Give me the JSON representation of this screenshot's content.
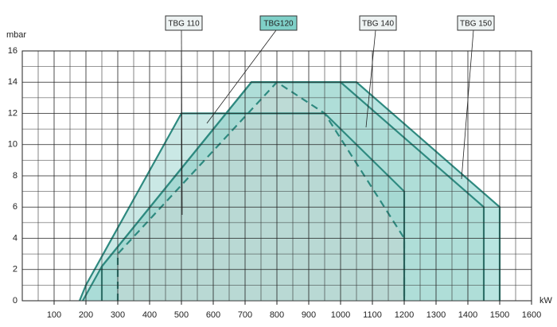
{
  "chart_data": {
    "type": "area",
    "ylabel": "mbar",
    "xlabel": "kW",
    "xlim": [
      0,
      1600
    ],
    "ylim": [
      0,
      16
    ],
    "xticks": [
      100,
      200,
      300,
      400,
      500,
      600,
      700,
      800,
      900,
      1000,
      1100,
      1200,
      1300,
      1400,
      1500,
      1600
    ],
    "yticks": [
      0,
      2,
      4,
      6,
      8,
      10,
      12,
      14,
      16
    ],
    "xminorticks": [
      50,
      150,
      250,
      350,
      450,
      550,
      650,
      750,
      850,
      950,
      1050,
      1150,
      1250,
      1350,
      1450,
      1550
    ],
    "yminorticks": [
      1,
      3,
      5,
      7,
      9,
      11,
      13,
      15
    ],
    "grid": true,
    "series": [
      {
        "name": "TBG 150",
        "color": "#7fd0c8",
        "x": [
          190,
          250,
          720,
          1050,
          1500,
          1500
        ],
        "values": [
          0,
          2.2,
          14,
          14,
          6,
          0
        ]
      },
      {
        "name": "TBG 140",
        "color": "#a8d8d2",
        "x": [
          250,
          250,
          720,
          1000,
          1450,
          1450
        ],
        "values": [
          0,
          2.2,
          14,
          14,
          6,
          0
        ]
      },
      {
        "name": "TBG 110",
        "color": "#9ed6cf",
        "x": [
          180,
          200,
          500,
          950,
          1200,
          1200
        ],
        "values": [
          0,
          1,
          12,
          12,
          7,
          0
        ]
      },
      {
        "name": "TBG120",
        "color": "#c9d8d6",
        "x": [
          300,
          300,
          800,
          950,
          1200,
          1200
        ],
        "values": [
          0,
          3,
          14,
          12,
          4,
          0
        ],
        "dashed": true
      }
    ]
  }
}
